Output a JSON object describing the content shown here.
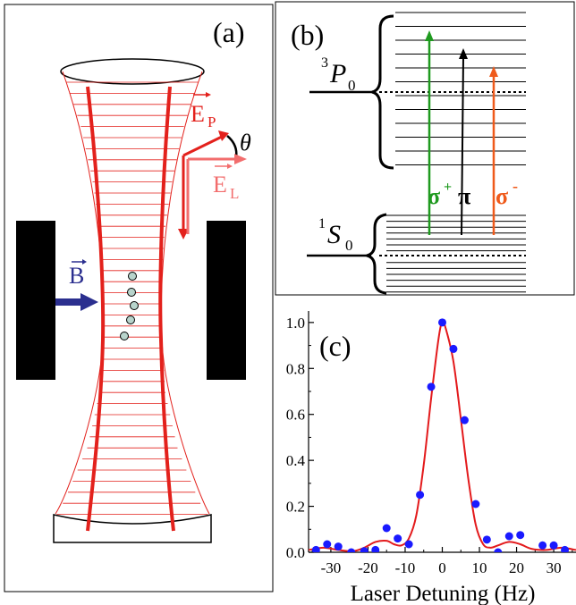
{
  "panel_a": {
    "label": "(a)",
    "e_probe": "E",
    "e_probe_sub": "P",
    "e_lattice": "E",
    "e_lattice_sub": "L",
    "angle": "θ",
    "b_field": "B",
    "colors": {
      "beam": "#e3211c",
      "b_arrow": "#2b2f8f",
      "e_lattice": "#f26d6d",
      "atom": "#b8d4cc"
    }
  },
  "panel_b": {
    "label": "(b)",
    "upper_state_sup": "3",
    "upper_state": "P",
    "upper_state_sub": "0",
    "lower_state_sup": "1",
    "lower_state": "S",
    "lower_state_sub": "0",
    "transitions": [
      {
        "symbol": "σ",
        "sup": "+",
        "color": "#1f9a1f"
      },
      {
        "symbol": "π",
        "sup": "",
        "color": "#000000"
      },
      {
        "symbol": "σ",
        "sup": "-",
        "color": "#ef5a1b"
      }
    ]
  },
  "panel_c": {
    "label": "(c)"
  },
  "chart_data": {
    "type": "scatter",
    "xlabel": "Laser Detuning (Hz)",
    "ylabel": "",
    "xlim": [
      -36,
      36
    ],
    "ylim": [
      0,
      1.05
    ],
    "xticks": [
      "-30",
      "-20",
      "-10",
      "0",
      "10",
      "20",
      "30"
    ],
    "yticks": [
      "0.0",
      "0.2",
      "0.4",
      "0.6",
      "0.8",
      "1.0"
    ],
    "series": [
      {
        "kind": "points",
        "color": "#1a1aff",
        "x": [
          -34,
          -31,
          -28,
          -24.5,
          -21,
          -18,
          -15,
          -12,
          -9,
          -6,
          -3,
          0,
          3,
          6,
          9,
          12,
          15,
          18,
          21,
          27,
          30,
          33
        ],
        "y": [
          0.01,
          0.035,
          0.025,
          0.0,
          0.005,
          0.01,
          0.105,
          0.06,
          0.035,
          0.25,
          0.72,
          1.0,
          0.885,
          0.575,
          0.21,
          0.055,
          0.0,
          0.07,
          0.075,
          0.03,
          0.03,
          0.01
        ]
      },
      {
        "kind": "line",
        "color": "#e31a1c",
        "x": [
          -36,
          -32,
          -28,
          -24,
          -21,
          -18,
          -15,
          -13,
          -11,
          -9,
          -7,
          -5,
          -3,
          -1,
          0,
          1,
          3,
          5,
          7,
          9,
          11,
          13,
          15,
          18,
          21,
          24,
          28,
          32,
          36
        ],
        "y": [
          0.01,
          0.02,
          0.01,
          0.005,
          0.02,
          0.045,
          0.05,
          0.035,
          0.03,
          0.06,
          0.16,
          0.38,
          0.67,
          0.93,
          1.0,
          0.97,
          0.83,
          0.58,
          0.32,
          0.12,
          0.035,
          0.02,
          0.03,
          0.045,
          0.035,
          0.015,
          0.01,
          0.02,
          0.01
        ]
      }
    ]
  }
}
